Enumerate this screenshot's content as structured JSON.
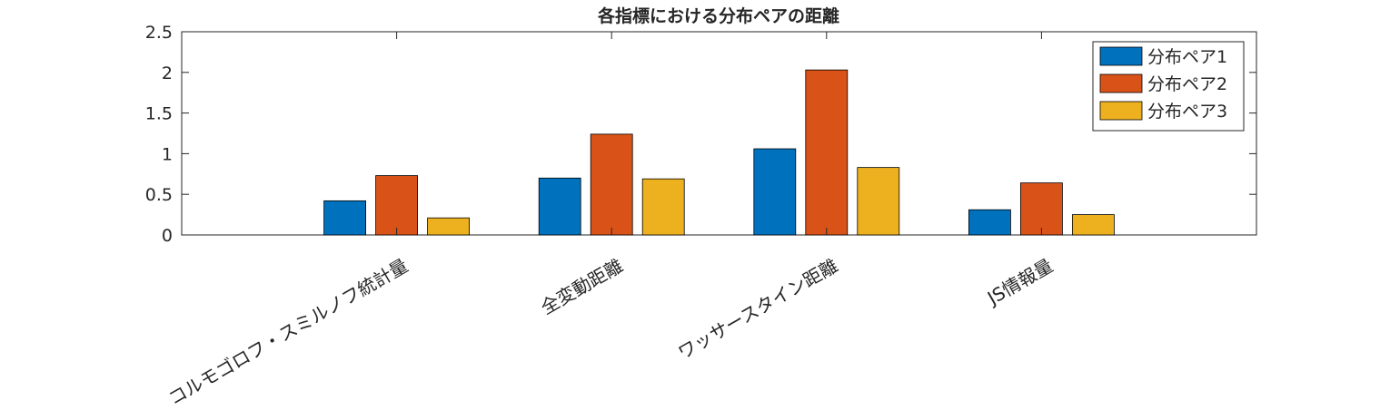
{
  "chart_data": {
    "type": "bar",
    "title": "各指標における分布ペアの距離",
    "xlabel": "",
    "ylabel": "",
    "categories": [
      "コルモゴロフ・スミルノフ統計量",
      "全変動距離",
      "ワッサースタイン距離",
      "JS情報量"
    ],
    "series": [
      {
        "name": "分布ペア1",
        "values": [
          0.42,
          0.7,
          1.06,
          0.31
        ],
        "color": "#0072BD"
      },
      {
        "name": "分布ペア2",
        "values": [
          0.73,
          1.24,
          2.03,
          0.64
        ],
        "color": "#D95319"
      },
      {
        "name": "分布ペア3",
        "values": [
          0.21,
          0.69,
          0.83,
          0.25
        ],
        "color": "#EDB120"
      }
    ],
    "ylim": [
      0,
      2.5
    ],
    "yticks": [
      0,
      0.5,
      1,
      1.5,
      2,
      2.5
    ],
    "ytick_labels": [
      "0",
      "0.5",
      "1",
      "1.5",
      "2",
      "2.5"
    ],
    "grid": false,
    "legend_position": "top-right"
  }
}
